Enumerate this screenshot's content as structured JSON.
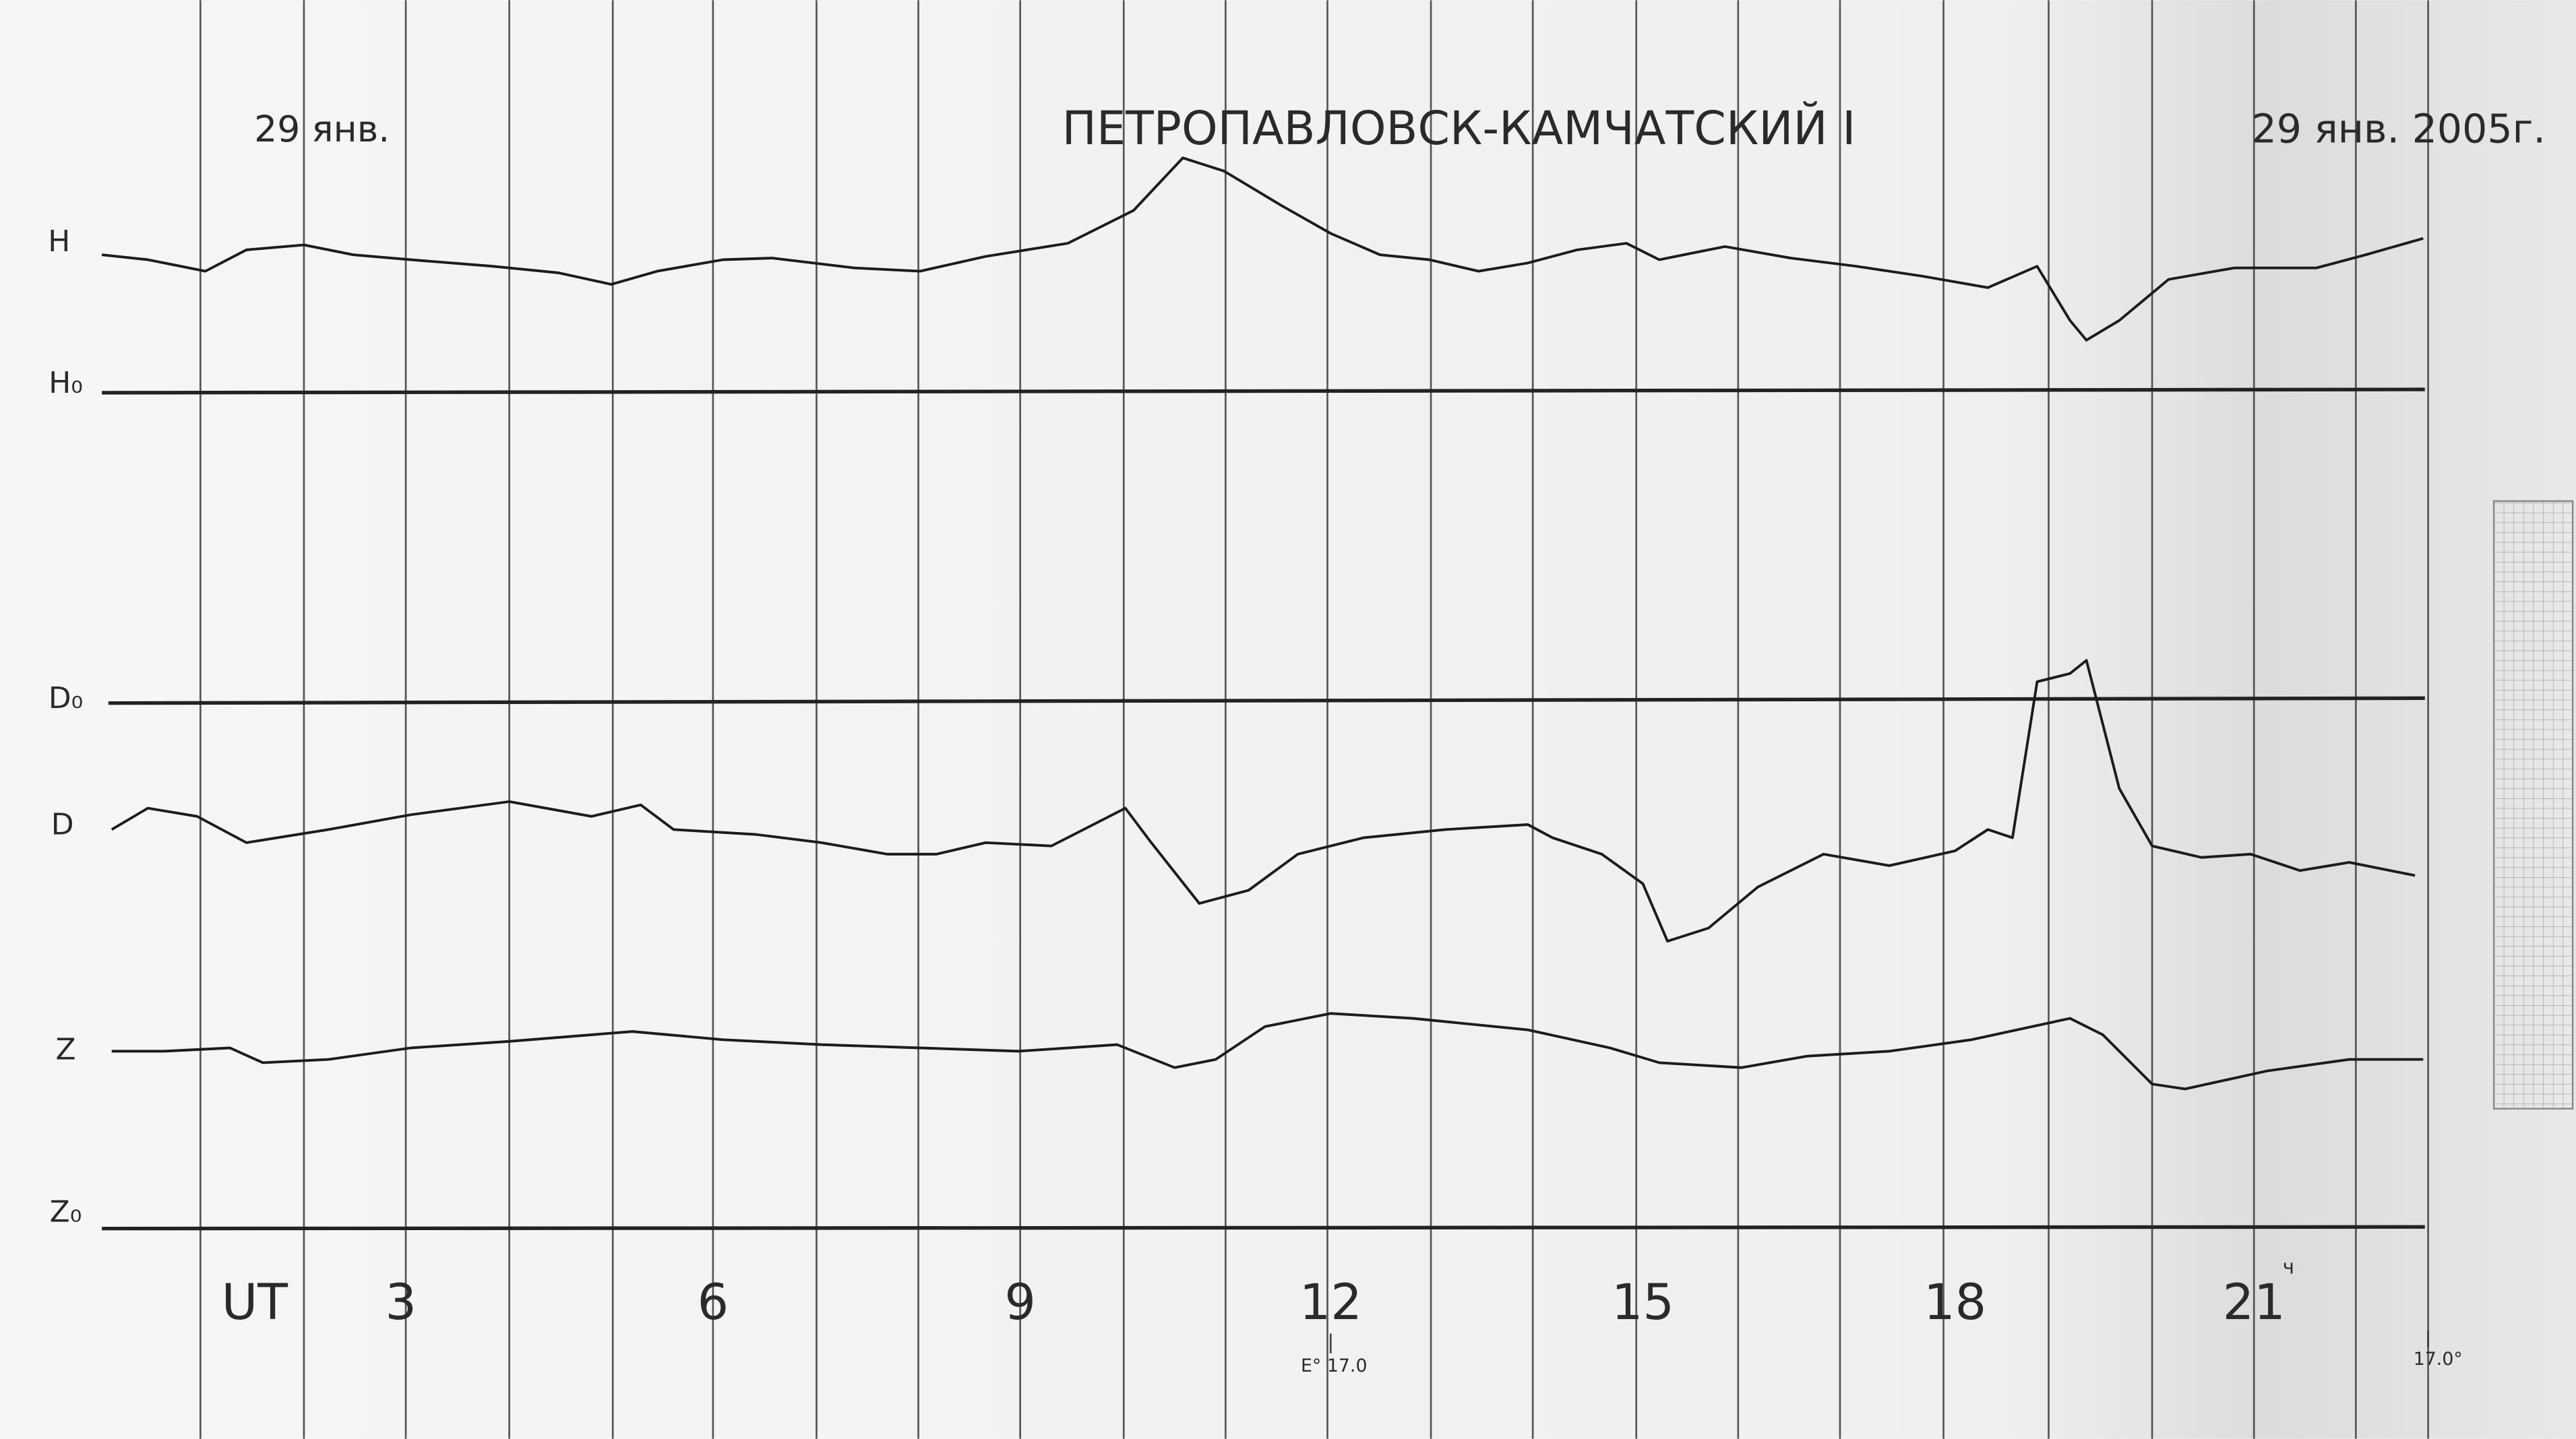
{
  "header": {
    "left_date": "29 янв.",
    "title": "ПЕТРОПАВЛОВСК-КАМЧАТСКИЙ I",
    "right_date": "29 янв. 2005г."
  },
  "trace_labels": {
    "h": "H",
    "h0": "H₀",
    "d0": "D₀",
    "d": "D",
    "z": "Z",
    "z0": "Z₀"
  },
  "time_axis": {
    "unit": "UT",
    "hours": [
      "3",
      "6",
      "9",
      "12",
      "15",
      "18",
      "21"
    ],
    "hour_suffix": "ч"
  },
  "annotations": {
    "temperature_mid": "E° 17.0",
    "temperature_end": "17.0°"
  }
}
